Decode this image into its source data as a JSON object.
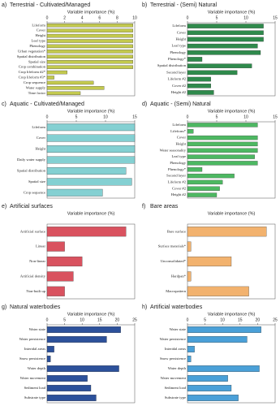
{
  "chart_data": [
    {
      "type": "bar",
      "panel": "a)",
      "title": "Terrestrial - Cultivated/Managed",
      "xlabel": "Variable importance (%)",
      "categories": [
        "Lifeform",
        "Cover",
        "Height",
        "Leaf type",
        "Phenology",
        "Urban vegetation*",
        "Spatial distribution",
        "Spatial size",
        "Crop combination",
        "Crop lifeform #2*",
        "Crop lifeform #3*",
        "Crop sequence",
        "Water supply",
        "Time factor"
      ],
      "values": [
        9.8,
        9.8,
        9.8,
        9.8,
        9.8,
        9.8,
        9.8,
        9.8,
        9.8,
        2.3,
        0.8,
        5.3,
        6.5,
        3.8
      ],
      "color": "#c3c94e",
      "xlim": [
        0,
        10
      ],
      "xticks": [
        0,
        2,
        4,
        6,
        8,
        10
      ]
    },
    {
      "type": "bar",
      "panel": "b)",
      "title": "Terrestrial - (Semi) Natural",
      "xlabel": "Variable importance (%)",
      "categories": [
        "Lifeform",
        "Cover",
        "Height",
        "Leaf type",
        "Phenology",
        "Phenology*",
        "Spatial distribution",
        "Second layer",
        "Lifeform #2",
        "Cover #2",
        "Height #2"
      ],
      "values": [
        13,
        13,
        13,
        12,
        12.5,
        2.5,
        11,
        8.5,
        4,
        4,
        4.5
      ],
      "color": "#2f8a4c",
      "xlim": [
        0,
        15
      ],
      "xticks": [
        0,
        5,
        10,
        15
      ]
    },
    {
      "type": "bar",
      "panel": "c)",
      "title": "Aquatic - Cultivated/Managed",
      "xlabel": "Variable importance (%)",
      "categories": [
        "Lifeform",
        "Cover",
        "Height",
        "Daily water supply",
        "Spatial distribution",
        "Spatial size",
        "Crop sequence"
      ],
      "values": [
        15,
        15,
        15,
        15,
        13.5,
        14.5,
        9.5
      ],
      "color": "#84d0d2",
      "xlim": [
        0,
        15
      ],
      "xticks": [
        0,
        5,
        10,
        15
      ]
    },
    {
      "type": "bar",
      "panel": "d)",
      "title": "Aquatic - (Semi) Natural",
      "xlabel": "Variable importance (%)",
      "categories": [
        "Lifeform",
        "Lifeform*",
        "Cover",
        "Height",
        "Water seasonality",
        "Leaf type",
        "Phenology",
        "Phenology*",
        "Second layer",
        "Lifeform #2",
        "Cover #2",
        "Height #2"
      ],
      "values": [
        12,
        1,
        12,
        12,
        12,
        11.5,
        12,
        2.5,
        8,
        6,
        5.5,
        5
      ],
      "color": "#4db862",
      "xlim": [
        0,
        15
      ],
      "xticks": [
        0,
        5,
        10,
        15
      ]
    },
    {
      "type": "bar",
      "panel": "e)",
      "title": "Artificial surfaces",
      "xlabel": "Variable importance (%)",
      "categories": [
        "Artificial surface",
        "Linear",
        "Non-linear",
        "Artificial density",
        "Non-built up"
      ],
      "values": [
        45,
        10,
        20,
        15,
        10
      ],
      "color": "#d9525f",
      "xlim": [
        0,
        50
      ]
    },
    {
      "type": "bar",
      "panel": "f)",
      "title": "Bare areas",
      "xlabel": "Variable importance (%)",
      "categories": [
        "Bare surface",
        "Surface materials*",
        "Unconsolidated*",
        "Hardpan*",
        "Macropattern"
      ],
      "values": [
        45,
        2,
        25,
        2,
        35
      ],
      "color": "#f2b26e",
      "xlim": [
        0,
        50
      ]
    },
    {
      "type": "bar",
      "panel": "g)",
      "title": "Natural waterbodies",
      "xlabel": "Variable importance (%)",
      "categories": [
        "Water state",
        "Water persistence",
        "Interidal areas",
        "Snow persistence",
        "Water depth",
        "Water movement",
        "Sediment load",
        "Substrate type"
      ],
      "values": [
        21,
        17,
        2,
        1,
        20.5,
        11.5,
        12.5,
        14
      ],
      "color": "#2c519b",
      "xlim": [
        0,
        25
      ],
      "xticks": [
        0,
        5,
        10,
        15,
        20,
        25
      ]
    },
    {
      "type": "bar",
      "panel": "h)",
      "title": "Artificial waterbodies",
      "xlabel": "Variable importance (%)",
      "categories": [
        "Water state",
        "Water persistence",
        "Interidal areas",
        "Snow persistence",
        "Water depth",
        "Water movement",
        "Sediment load",
        "Substrate type"
      ],
      "values": [
        21,
        17,
        2,
        1,
        20.5,
        11.5,
        12.5,
        14.5
      ],
      "color": "#4aa0d8",
      "xlim": [
        0,
        25
      ],
      "xticks": [
        0,
        5,
        10,
        15,
        20,
        25
      ]
    }
  ]
}
